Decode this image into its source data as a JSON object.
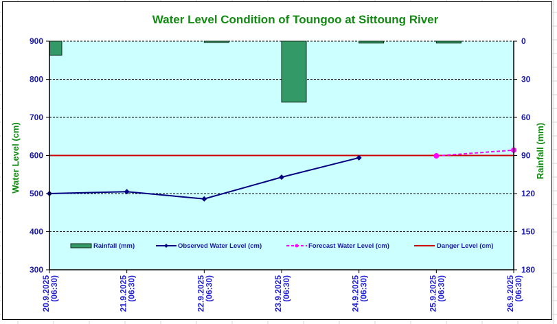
{
  "chart_data": {
    "type": "bar+line",
    "title": "Water Level Condition of Toungoo at  Sittoung River",
    "ylabel": "Water Level (cm)",
    "y2label": "Rainfall (mm)",
    "ylim": [
      300,
      900
    ],
    "yticks": [
      300,
      400,
      500,
      600,
      700,
      800,
      900
    ],
    "y2lim": [
      180,
      0
    ],
    "y2ticks": [
      0,
      30,
      60,
      90,
      120,
      150,
      180
    ],
    "categories": [
      [
        "20.9.2025",
        "(06:30)"
      ],
      [
        "21.9.2025",
        "(06:30)"
      ],
      [
        "22.9.2025",
        "(06:30)"
      ],
      [
        "23.9.2025",
        "(06:30)"
      ],
      [
        "24.9.2025",
        "(06:30)"
      ],
      [
        "25.9.2025",
        "(06:30)"
      ],
      [
        "26.9.2025",
        "(06:30)"
      ]
    ],
    "series": [
      {
        "name": "Rainfall (mm)",
        "axis": "right",
        "kind": "bar",
        "color": "#339966",
        "values": [
          11,
          null,
          1,
          48,
          1.5,
          1.5,
          null
        ]
      },
      {
        "name": "Observed Water Level (cm)",
        "axis": "left",
        "kind": "line",
        "color": "#000080",
        "values": [
          500,
          505,
          486,
          543,
          594,
          null,
          null
        ]
      },
      {
        "name": "Forecast Water Level (cm)",
        "axis": "left",
        "kind": "dashed-line",
        "color": "#ff00ff",
        "values": [
          null,
          null,
          null,
          null,
          null,
          599,
          614
        ]
      },
      {
        "name": "Danger Level (cm)",
        "axis": "left",
        "kind": "hline",
        "color": "#cc0000",
        "value": 600
      }
    ],
    "legend_position": "bottom-inside",
    "grid": true,
    "plot_bg": "#ccffff"
  }
}
